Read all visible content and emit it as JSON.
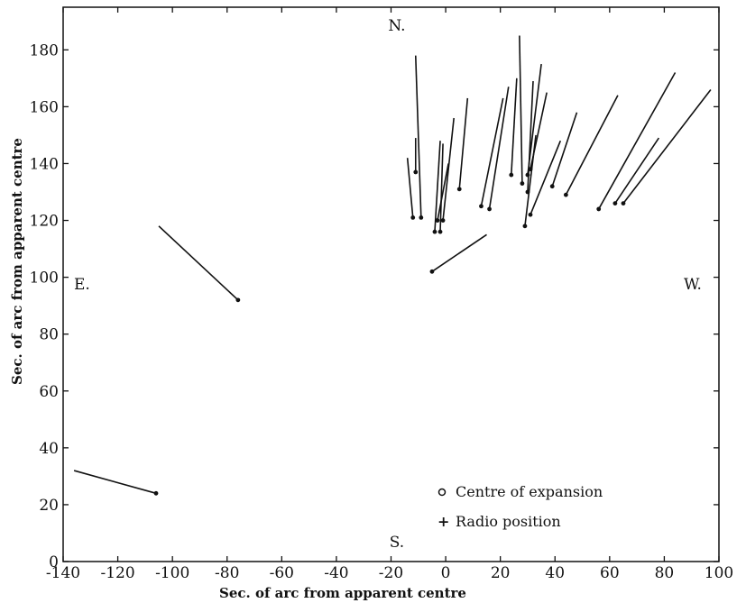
{
  "chart_data": {
    "type": "scatter",
    "xlabel": "Sec. of arc from apparent centre",
    "ylabel": "Sec. of arc from apparent centre",
    "xlim": [
      -140,
      100
    ],
    "ylim": [
      0,
      195
    ],
    "x_ticks": [
      -140,
      -120,
      -100,
      -80,
      -60,
      -40,
      -20,
      0,
      20,
      40,
      60,
      80,
      100
    ],
    "y_ticks": [
      0,
      20,
      40,
      60,
      80,
      100,
      120,
      140,
      160,
      180
    ],
    "x_tick_labels": [
      "-140",
      "-120",
      "-100",
      "-80",
      "-60",
      "-40",
      "-20",
      "0",
      "20",
      "40",
      "60",
      "80",
      "100"
    ],
    "y_tick_labels": [
      "0",
      "20",
      "40",
      "60",
      "80",
      "100",
      "120",
      "140",
      "160",
      "180"
    ],
    "grid": false,
    "compass": {
      "north": "N.",
      "south": "S.",
      "east": "E.",
      "west": "W."
    },
    "legend": {
      "placement": "bottom-right",
      "entries": [
        {
          "symbol": "o",
          "label": "Centre of expansion"
        },
        {
          "symbol": "+",
          "label": "Radio position"
        }
      ]
    },
    "vectors": [
      {
        "x": -106,
        "y": 24,
        "x2": -136,
        "y2": 32
      },
      {
        "x": -76,
        "y": 92,
        "x2": -105,
        "y2": 118
      },
      {
        "x": -5,
        "y": 102,
        "x2": 15,
        "y2": 115
      },
      {
        "x": -12,
        "y": 121,
        "x2": -14,
        "y2": 142
      },
      {
        "x": -11,
        "y": 137,
        "x2": -11,
        "y2": 149
      },
      {
        "x": -9,
        "y": 121,
        "x2": -11,
        "y2": 178
      },
      {
        "x": -4,
        "y": 116,
        "x2": -2,
        "y2": 148
      },
      {
        "x": -3,
        "y": 120,
        "x2": 1,
        "y2": 140
      },
      {
        "x": -2,
        "y": 116,
        "x2": -1,
        "y2": 147
      },
      {
        "x": -1,
        "y": 120,
        "x2": 3,
        "y2": 156
      },
      {
        "x": 5,
        "y": 131,
        "x2": 8,
        "y2": 163
      },
      {
        "x": 13,
        "y": 125,
        "x2": 21,
        "y2": 163
      },
      {
        "x": 16,
        "y": 124,
        "x2": 23,
        "y2": 167
      },
      {
        "x": 24,
        "y": 136,
        "x2": 26,
        "y2": 170
      },
      {
        "x": 28,
        "y": 133,
        "x2": 27,
        "y2": 185
      },
      {
        "x": 29,
        "y": 118,
        "x2": 33,
        "y2": 150
      },
      {
        "x": 30,
        "y": 130,
        "x2": 32,
        "y2": 169
      },
      {
        "x": 30,
        "y": 136,
        "x2": 35,
        "y2": 175
      },
      {
        "x": 31,
        "y": 122,
        "x2": 42,
        "y2": 148
      },
      {
        "x": 31,
        "y": 138,
        "x2": 37,
        "y2": 165
      },
      {
        "x": 39,
        "y": 132,
        "x2": 48,
        "y2": 158
      },
      {
        "x": 44,
        "y": 129,
        "x2": 63,
        "y2": 164
      },
      {
        "x": 56,
        "y": 124,
        "x2": 84,
        "y2": 172
      },
      {
        "x": 62,
        "y": 126,
        "x2": 78,
        "y2": 149
      },
      {
        "x": 65,
        "y": 126,
        "x2": 97,
        "y2": 166
      }
    ]
  }
}
